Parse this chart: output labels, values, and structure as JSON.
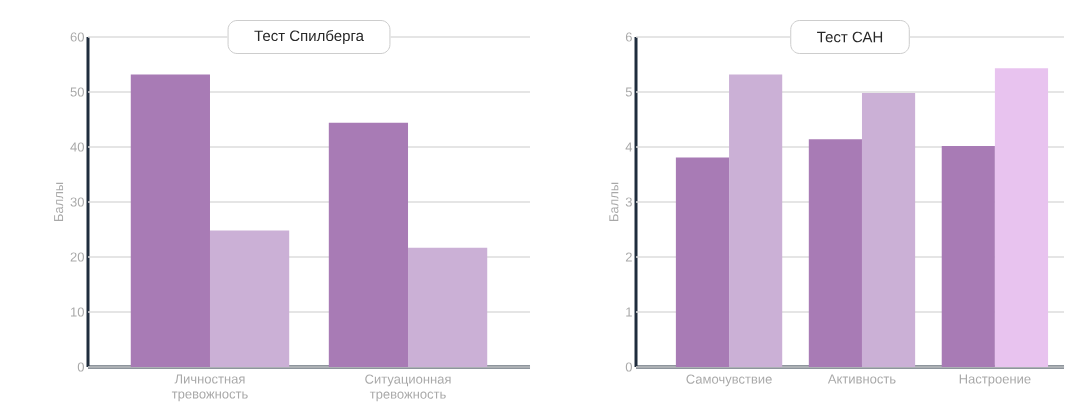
{
  "chart_data": [
    {
      "type": "bar",
      "title": "Тест Спилберга",
      "ylabel": "Баллы",
      "categories": [
        "Личностная тревожность",
        "Ситуационная тревожность"
      ],
      "series": [
        {
          "color": "#a87bb5",
          "values": [
            53.2,
            44.4
          ]
        },
        {
          "color": "#cbb0d6",
          "values": [
            24.8,
            21.7
          ]
        }
      ],
      "ylim": [
        0,
        60
      ],
      "yticks": [
        0,
        10,
        20,
        30,
        40,
        50,
        60
      ],
      "grid": "y"
    },
    {
      "type": "bar",
      "title": "Тест САН",
      "ylabel": "Баллы",
      "categories": [
        "Самочувствие",
        "Активность",
        "Настроение"
      ],
      "series": [
        {
          "color": "#a87bb5",
          "values": [
            3.81,
            4.14,
            4.02
          ]
        },
        {
          "colors": [
            "#cbb0d6",
            "#cbb0d6",
            "#e8c3ef"
          ],
          "values": [
            5.32,
            4.98,
            5.43
          ]
        }
      ],
      "ylim": [
        0,
        6
      ],
      "yticks": [
        0,
        1,
        2,
        3,
        4,
        5,
        6
      ],
      "grid": "y"
    }
  ]
}
